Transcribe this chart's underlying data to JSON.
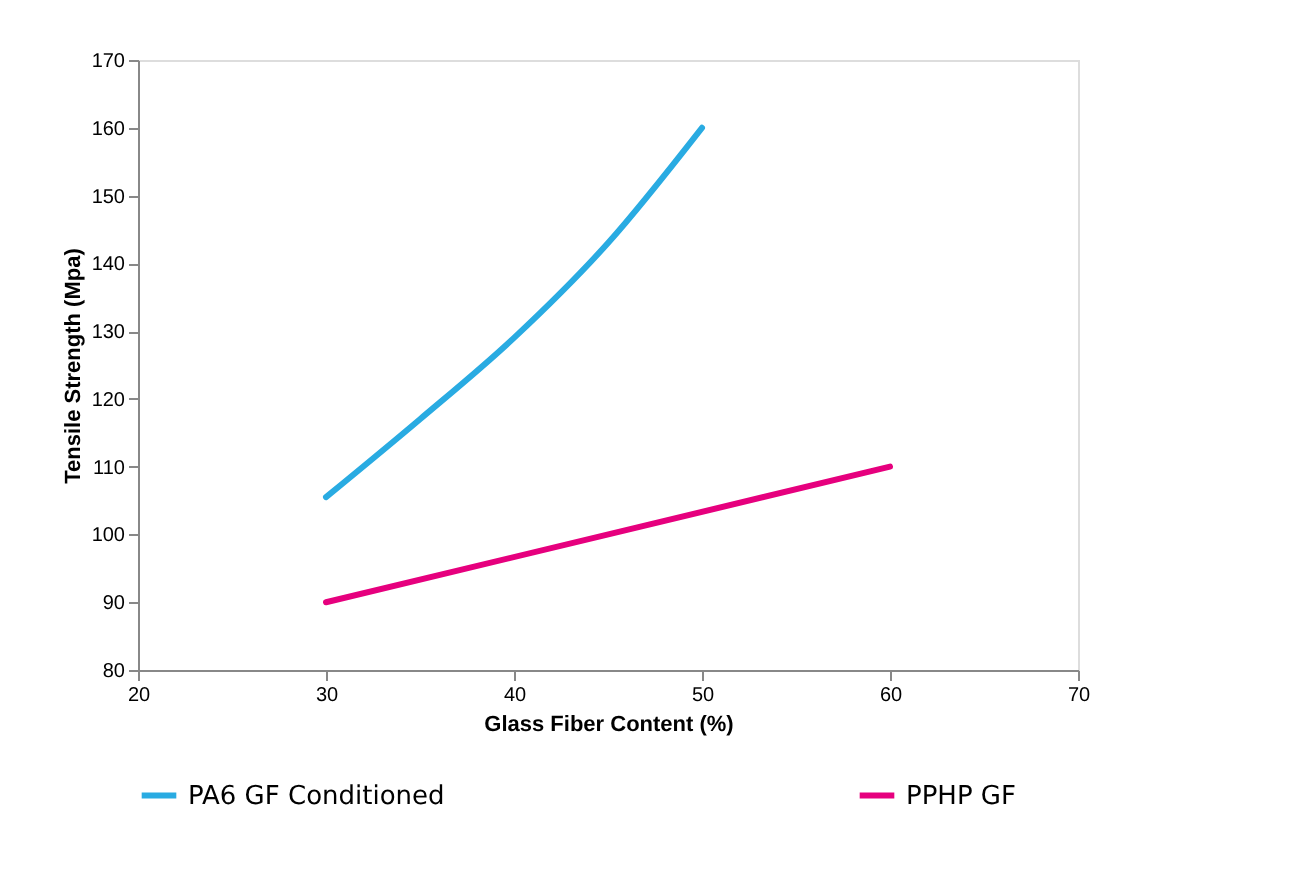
{
  "chart_data": {
    "type": "line",
    "xlabel": "Glass Fiber Content (%)",
    "ylabel": "Tensile Strength (Mpa)",
    "xlim": [
      20,
      70
    ],
    "xticks": [
      20,
      30,
      40,
      50,
      60,
      70
    ],
    "ylim": [
      80,
      170
    ],
    "yticks": [
      80,
      90,
      100,
      110,
      120,
      130,
      140,
      150,
      160,
      170
    ],
    "grid": false,
    "legend": "bottom",
    "line_style": "solid",
    "series": [
      {
        "name": "PA6 GF Conditioned",
        "color": "#29abe2",
        "x": [
          30,
          35,
          40,
          45,
          50
        ],
        "values": [
          105.5,
          117,
          129,
          143,
          160
        ]
      },
      {
        "name": "PPHP GF",
        "color": "#e6007e",
        "x": [
          30,
          60
        ],
        "values": [
          90,
          110
        ]
      }
    ]
  }
}
